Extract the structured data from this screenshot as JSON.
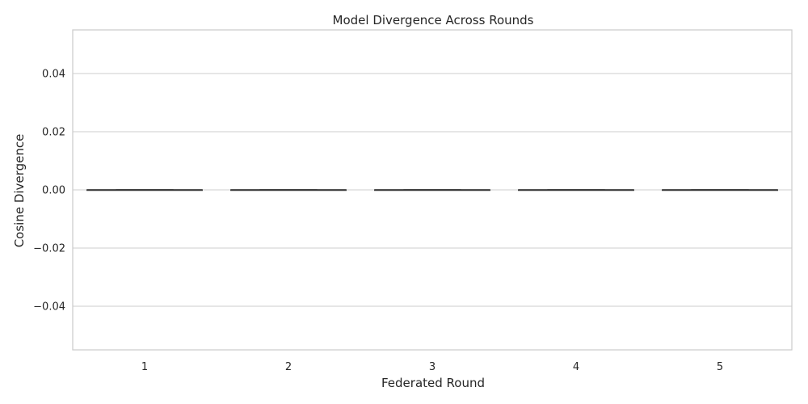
{
  "chart_data": {
    "type": "boxplot",
    "title": "Model Divergence Across Rounds",
    "xlabel": "Federated Round",
    "ylabel": "Cosine Divergence",
    "categories": [
      "1",
      "2",
      "3",
      "4",
      "5"
    ],
    "series": [
      {
        "values": [
          {
            "min": 0.0,
            "q1": 0.0,
            "median": 0.0,
            "q3": 0.0,
            "max": 0.0
          },
          {
            "min": 0.0,
            "q1": 0.0,
            "median": 0.0,
            "q3": 0.0,
            "max": 0.0
          },
          {
            "min": 0.0,
            "q1": 0.0,
            "median": 0.0,
            "q3": 0.0,
            "max": 0.0
          },
          {
            "min": 0.0,
            "q1": 0.0,
            "median": 0.0,
            "q3": 0.0,
            "max": 0.0
          },
          {
            "min": 0.0,
            "q1": 0.0,
            "median": 0.0,
            "q3": 0.0,
            "max": 0.0
          }
        ]
      }
    ],
    "ylim": [
      -0.055,
      0.055
    ],
    "yticks": [
      -0.04,
      -0.02,
      0.0,
      0.02,
      0.04
    ],
    "ytick_labels": [
      "−0.04",
      "−0.02",
      "0.00",
      "0.02",
      "0.04"
    ],
    "grid": "y",
    "colors": {
      "grid": "#cccccc",
      "frame": "#cccccc",
      "box": "#3a3a3a",
      "text": "#262626"
    }
  }
}
